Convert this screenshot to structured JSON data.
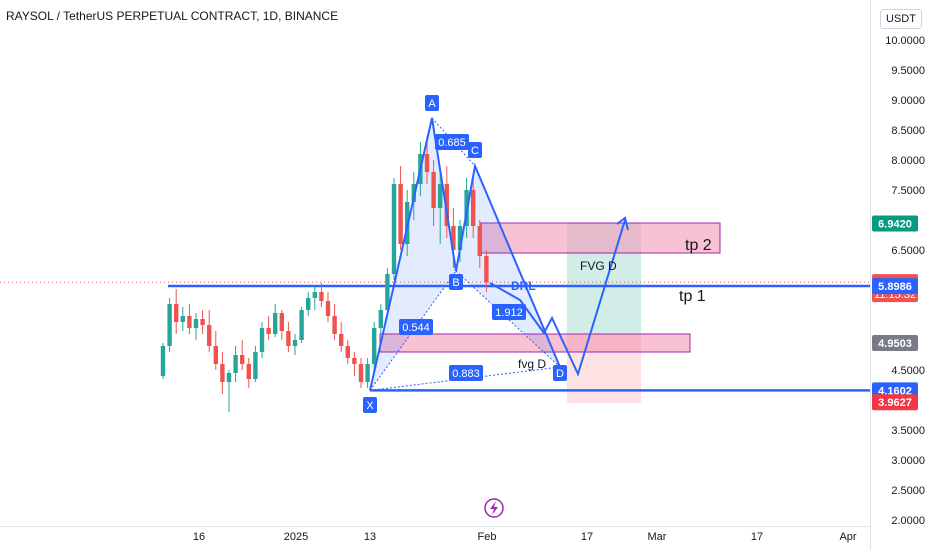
{
  "header": {
    "title": "RAYSOL / TetherUS PERPETUAL CONTRACT, 1D, BINANCE",
    "currency": "USDT"
  },
  "colors": {
    "up": "#26a69a",
    "down": "#ef5350",
    "pattern_line": "#2962ff",
    "zone_fill": "#f8bbd0",
    "zone_border": "#9c27b0"
  },
  "chart_data": {
    "type": "candlestick",
    "y_ticks": [
      "10.0000",
      "9.5000",
      "9.0000",
      "8.5000",
      "8.0000",
      "7.5000",
      "6.5000",
      "4.5000",
      "3.5000",
      "3.0000",
      "2.5000",
      "2.0000"
    ],
    "x_ticks": [
      "16",
      "2025",
      "13",
      "Feb",
      "17",
      "Mar",
      "17",
      "Apr"
    ],
    "price_badges": [
      {
        "text": "6.9420",
        "price": 6.942,
        "bg": "#089981",
        "fg": "#ffffff"
      },
      {
        "text": "5.9643",
        "price": 5.9643,
        "bg": "#ef5350",
        "fg": "#ffffff",
        "sub": "11:15:32"
      },
      {
        "text": "5.8986",
        "price": 5.8986,
        "bg": "#2962ff",
        "fg": "#ffffff"
      },
      {
        "text": "4.9503",
        "price": 4.9503,
        "bg": "#787b86",
        "fg": "#ffffff"
      },
      {
        "text": "4.1602",
        "price": 4.1602,
        "bg": "#2962ff",
        "fg": "#ffffff"
      },
      {
        "text": "3.9627",
        "price": 3.9627,
        "bg": "#f23645",
        "fg": "#ffffff"
      }
    ],
    "candles": [
      [
        4.4,
        4.95,
        4.35,
        4.9
      ],
      [
        4.9,
        5.7,
        4.8,
        5.6
      ],
      [
        5.6,
        5.85,
        5.1,
        5.3
      ],
      [
        5.3,
        5.55,
        5.15,
        5.4
      ],
      [
        5.4,
        5.6,
        5.1,
        5.2
      ],
      [
        5.2,
        5.45,
        5.0,
        5.35
      ],
      [
        5.35,
        5.5,
        5.1,
        5.25
      ],
      [
        5.25,
        5.5,
        4.8,
        4.9
      ],
      [
        4.9,
        5.15,
        4.5,
        4.6
      ],
      [
        4.6,
        4.8,
        4.1,
        4.3
      ],
      [
        4.3,
        4.5,
        3.8,
        4.45
      ],
      [
        4.45,
        4.9,
        4.3,
        4.75
      ],
      [
        4.75,
        5.0,
        4.5,
        4.6
      ],
      [
        4.6,
        4.7,
        4.2,
        4.35
      ],
      [
        4.35,
        4.9,
        4.3,
        4.8
      ],
      [
        4.8,
        5.3,
        4.7,
        5.2
      ],
      [
        5.2,
        5.4,
        5.0,
        5.1
      ],
      [
        5.1,
        5.6,
        5.05,
        5.45
      ],
      [
        5.45,
        5.5,
        5.0,
        5.15
      ],
      [
        5.15,
        5.3,
        4.8,
        4.9
      ],
      [
        4.9,
        5.1,
        4.75,
        5.0
      ],
      [
        5.0,
        5.55,
        4.95,
        5.5
      ],
      [
        5.5,
        5.8,
        5.4,
        5.7
      ],
      [
        5.7,
        5.9,
        5.5,
        5.8
      ],
      [
        5.8,
        5.95,
        5.55,
        5.65
      ],
      [
        5.65,
        5.8,
        5.3,
        5.4
      ],
      [
        5.4,
        5.6,
        5.0,
        5.1
      ],
      [
        5.1,
        5.3,
        4.8,
        4.9
      ],
      [
        4.9,
        5.0,
        4.6,
        4.7
      ],
      [
        4.7,
        4.8,
        4.4,
        4.6
      ],
      [
        4.6,
        4.7,
        4.2,
        4.3
      ],
      [
        4.3,
        4.7,
        4.2,
        4.6
      ],
      [
        4.6,
        5.3,
        4.5,
        5.2
      ],
      [
        5.2,
        5.6,
        5.1,
        5.5
      ],
      [
        5.5,
        6.2,
        5.4,
        6.1
      ],
      [
        6.1,
        7.7,
        6.0,
        7.6
      ],
      [
        7.6,
        7.9,
        6.5,
        6.6
      ],
      [
        6.6,
        7.5,
        6.4,
        7.3
      ],
      [
        7.3,
        7.8,
        7.0,
        7.6
      ],
      [
        7.6,
        8.3,
        7.4,
        8.1
      ],
      [
        8.1,
        8.4,
        7.6,
        7.8
      ],
      [
        7.8,
        8.0,
        6.9,
        7.2
      ],
      [
        7.2,
        7.8,
        6.6,
        7.6
      ],
      [
        7.6,
        7.9,
        6.7,
        6.9
      ],
      [
        6.9,
        7.2,
        6.2,
        6.5
      ],
      [
        6.5,
        7.0,
        6.3,
        6.9
      ],
      [
        6.9,
        7.7,
        6.7,
        7.5
      ],
      [
        7.5,
        7.7,
        6.7,
        6.9
      ],
      [
        6.9,
        7.0,
        6.2,
        6.4
      ],
      [
        6.4,
        6.5,
        5.8,
        5.96
      ]
    ],
    "pattern_points": [
      {
        "label": "X",
        "price": 4.16
      },
      {
        "label": "A",
        "price": 8.7
      },
      {
        "label": "B",
        "price": 6.15
      },
      {
        "label": "C",
        "price": 7.9
      },
      {
        "label": "D",
        "price": 4.55
      }
    ],
    "pattern_ratios": [
      "0.685",
      "0.544",
      "1.912",
      "0.883"
    ],
    "annotations": {
      "drl": "DRL",
      "tp1": "tp 1",
      "tp2": "tp 2",
      "fvg_upper": "FVG D",
      "fvg_lower": "fvg D"
    },
    "levels": {
      "tp1": 5.9,
      "x_level": 4.16
    },
    "zones": {
      "tp2": {
        "low": 6.45,
        "high": 6.95
      },
      "fvg": {
        "low": 4.8,
        "high": 5.1
      }
    },
    "position": {
      "entry": 5.1,
      "target": 6.95,
      "stop": 3.95
    }
  }
}
